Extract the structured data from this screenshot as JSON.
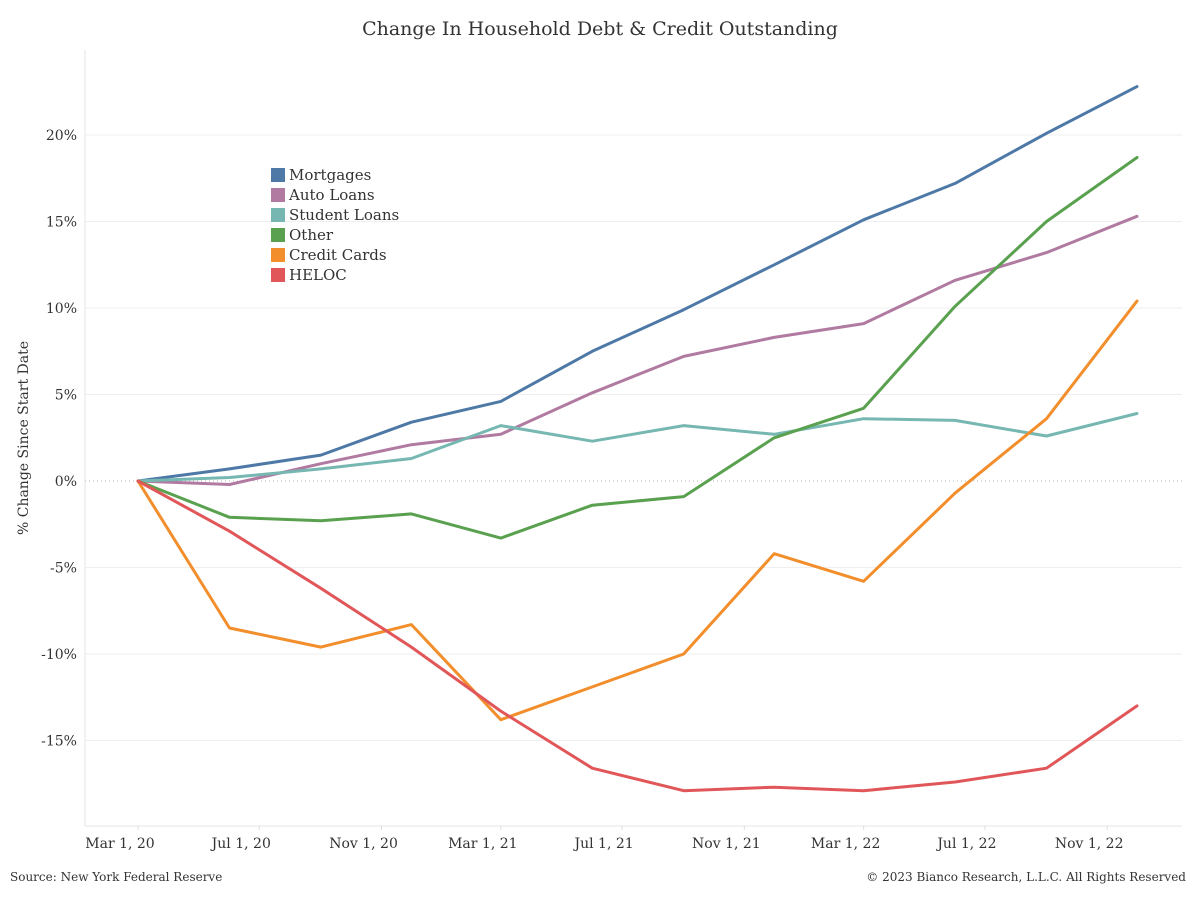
{
  "chart_data": {
    "type": "line",
    "title": "Change In Household Debt & Credit Outstanding",
    "ylabel": "% Change Since Start Date",
    "xlabel": "",
    "x": [
      "2020-03-01",
      "2020-06-01",
      "2020-09-01",
      "2020-12-01",
      "2021-03-01",
      "2021-06-01",
      "2021-09-01",
      "2021-12-01",
      "2022-03-01",
      "2022-06-01",
      "2022-09-01",
      "2022-12-01"
    ],
    "x_ticks": [
      "2020-03-01",
      "2020-07-01",
      "2020-11-01",
      "2021-03-01",
      "2021-07-01",
      "2021-11-01",
      "2022-03-01",
      "2022-07-01",
      "2022-11-01"
    ],
    "x_tick_labels": [
      "Mar 1, 20",
      "Jul 1, 20",
      "Nov 1, 20",
      "Mar 1, 21",
      "Jul 1, 21",
      "Nov 1, 21",
      "Mar 1, 22",
      "Jul 1, 22",
      "Nov 1, 22"
    ],
    "y_ticks": [
      -15,
      -10,
      -5,
      0,
      5,
      10,
      15,
      20
    ],
    "y_tick_labels": [
      "-15%",
      "-10%",
      "-5%",
      "0%",
      "5%",
      "10%",
      "15%",
      "20%"
    ],
    "ylim": [
      -20,
      25
    ],
    "grid": "horizontal",
    "legend_position": "top-left",
    "series": [
      {
        "name": "Mortgages",
        "color": "#4e79a7",
        "values": [
          0,
          0.7,
          1.5,
          3.4,
          4.6,
          7.5,
          9.9,
          12.5,
          15.1,
          17.2,
          20.1,
          22.8
        ]
      },
      {
        "name": "Auto Loans",
        "color": "#b07aa1",
        "values": [
          0,
          -0.2,
          1.0,
          2.1,
          2.7,
          5.1,
          7.2,
          8.3,
          9.1,
          11.6,
          13.2,
          15.3
        ]
      },
      {
        "name": "Student Loans",
        "color": "#76b7b2",
        "values": [
          0,
          0.2,
          0.7,
          1.3,
          3.2,
          2.3,
          3.2,
          2.7,
          3.6,
          3.5,
          2.6,
          3.9
        ]
      },
      {
        "name": "Other",
        "color": "#59a14f",
        "values": [
          0,
          -2.1,
          -2.3,
          -1.9,
          -3.3,
          -1.4,
          -0.9,
          2.5,
          4.2,
          10.1,
          15.0,
          18.7
        ]
      },
      {
        "name": "Credit Cards",
        "color": "#f28e2b",
        "values": [
          0,
          -8.5,
          -9.6,
          -8.3,
          -13.8,
          -11.9,
          -10.0,
          -4.2,
          -5.8,
          -0.7,
          3.6,
          10.4
        ]
      },
      {
        "name": "HELOC",
        "color": "#e15759",
        "values": [
          0,
          -2.9,
          -6.2,
          -9.6,
          -13.3,
          -16.6,
          -17.9,
          -17.7,
          -17.9,
          -17.4,
          -16.6,
          -13.0
        ]
      }
    ]
  },
  "footer": {
    "source": "Source: New York Federal Reserve",
    "copyright": "© 2023 Bianco Research, L.L.C. All Rights Reserved"
  }
}
